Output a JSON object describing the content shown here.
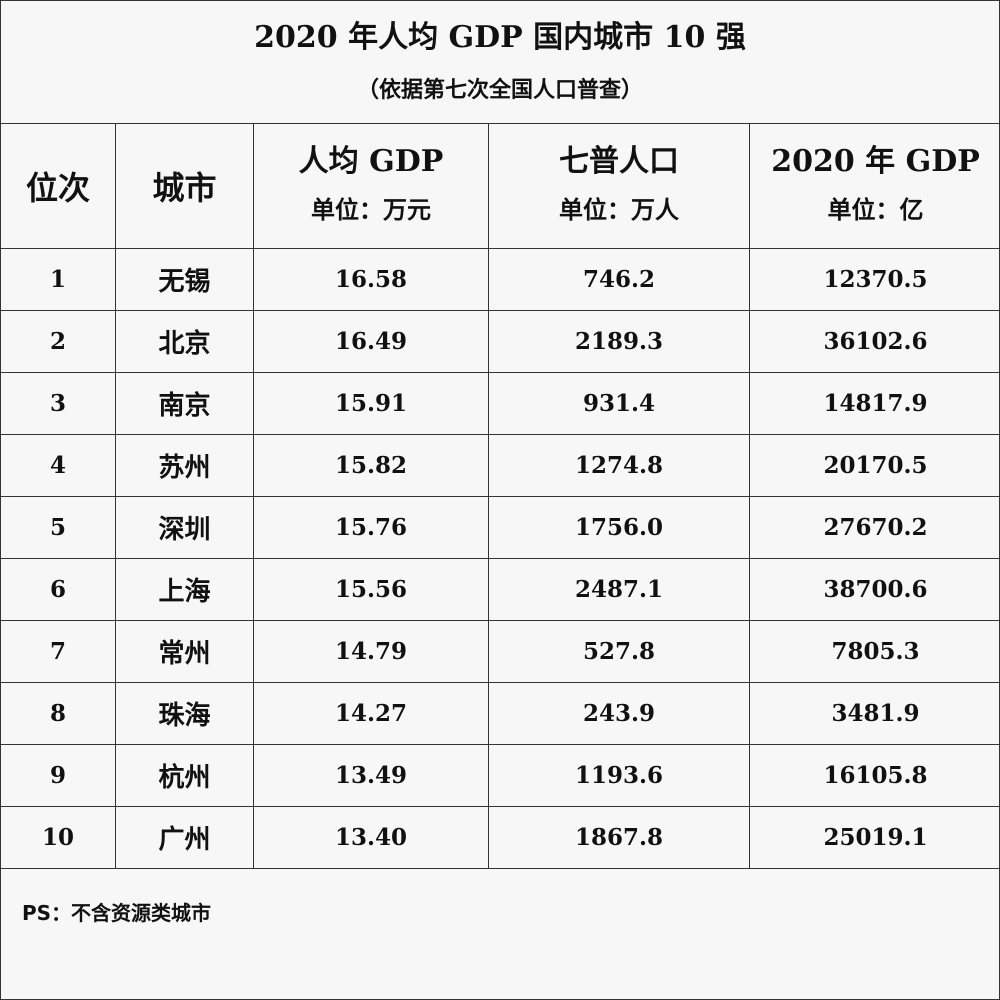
{
  "title": "2020 年人均 GDP 国内城市 10 强",
  "subtitle": "（依据第七次全国人口普查）",
  "headers": {
    "rank": "位次",
    "city": "城市",
    "gdp_per_capita": {
      "main": "人均 GDP",
      "unit": "单位：万元"
    },
    "population": {
      "main": "七普人口",
      "unit": "单位：万人"
    },
    "gdp_total": {
      "main": "2020 年 GDP",
      "unit": "单位：亿"
    }
  },
  "rows": [
    {
      "rank": "1",
      "city": "无锡",
      "gdp_per_capita": "16.58",
      "population": "746.2",
      "gdp_total": "12370.5"
    },
    {
      "rank": "2",
      "city": "北京",
      "gdp_per_capita": "16.49",
      "population": "2189.3",
      "gdp_total": "36102.6"
    },
    {
      "rank": "3",
      "city": "南京",
      "gdp_per_capita": "15.91",
      "population": "931.4",
      "gdp_total": "14817.9"
    },
    {
      "rank": "4",
      "city": "苏州",
      "gdp_per_capita": "15.82",
      "population": "1274.8",
      "gdp_total": "20170.5"
    },
    {
      "rank": "5",
      "city": "深圳",
      "gdp_per_capita": "15.76",
      "population": "1756.0",
      "gdp_total": "27670.2"
    },
    {
      "rank": "6",
      "city": "上海",
      "gdp_per_capita": "15.56",
      "population": "2487.1",
      "gdp_total": "38700.6"
    },
    {
      "rank": "7",
      "city": "常州",
      "gdp_per_capita": "14.79",
      "population": "527.8",
      "gdp_total": "7805.3"
    },
    {
      "rank": "8",
      "city": "珠海",
      "gdp_per_capita": "14.27",
      "population": "243.9",
      "gdp_total": "3481.9"
    },
    {
      "rank": "9",
      "city": "杭州",
      "gdp_per_capita": "13.49",
      "population": "1193.6",
      "gdp_total": "16105.8"
    },
    {
      "rank": "10",
      "city": "广州",
      "gdp_per_capita": "13.40",
      "population": "1867.8",
      "gdp_total": "25019.1"
    }
  ],
  "footnote": "PS：不含资源类城市"
}
